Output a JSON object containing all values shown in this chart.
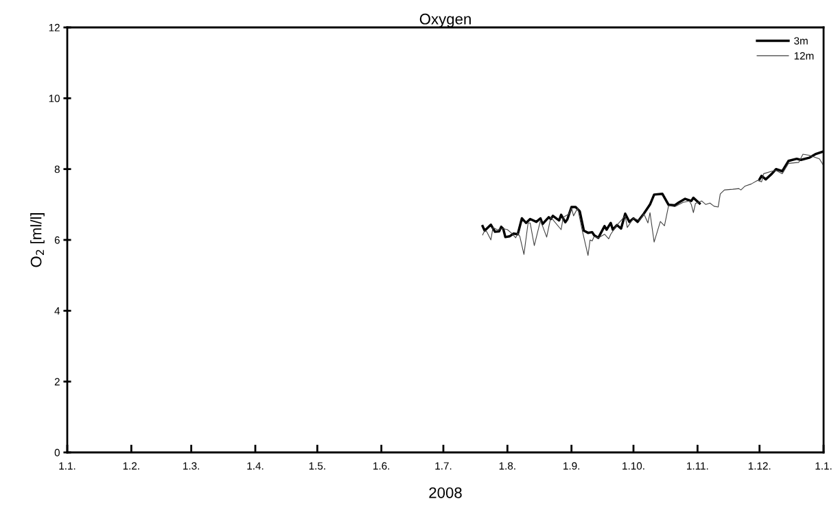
{
  "chart_data": {
    "type": "line",
    "title": "Oxygen",
    "xlabel": "2008",
    "ylabel": "O$_{2}$ [ml/l]",
    "xlim": [
      "2008-01-01",
      "2009-01-01"
    ],
    "ylim": [
      0,
      12
    ],
    "yticks": [
      0,
      2,
      4,
      6,
      8,
      10,
      12
    ],
    "xticks": [
      {
        "value": "2008-01-01",
        "label": "1.1."
      },
      {
        "value": "2008-02-01",
        "label": "1.2."
      },
      {
        "value": "2008-03-01",
        "label": "1.3."
      },
      {
        "value": "2008-04-01",
        "label": "1.4."
      },
      {
        "value": "2008-05-01",
        "label": "1.5."
      },
      {
        "value": "2008-06-01",
        "label": "1.6."
      },
      {
        "value": "2008-07-01",
        "label": "1.7."
      },
      {
        "value": "2008-08-01",
        "label": "1.8."
      },
      {
        "value": "2008-09-01",
        "label": "1.9."
      },
      {
        "value": "2008-10-01",
        "label": "1.10."
      },
      {
        "value": "2008-11-01",
        "label": "1.11."
      },
      {
        "value": "2008-12-01",
        "label": "1.12."
      },
      {
        "value": "2009-01-01",
        "label": "1.1."
      }
    ],
    "legend": "top right",
    "grid": false,
    "marker": "none",
    "series": [
      {
        "name": "3m",
        "color": "#000000",
        "x": [
          "2008-07-20",
          "2008-07-21",
          "2008-07-24",
          "2008-07-26",
          "2008-07-28",
          "2008-07-29",
          "2008-07-30",
          "2008-07-31",
          "2008-08-02",
          "2008-08-04",
          "2008-08-06",
          "2008-08-08",
          "2008-08-10",
          "2008-08-12",
          "2008-08-15",
          "2008-08-17",
          "2008-08-18",
          "2008-08-21",
          "2008-08-22",
          "2008-08-23",
          "2008-08-26",
          "2008-08-27",
          "2008-08-29",
          "2008-08-30",
          "2008-09-01",
          "2008-09-03",
          "2008-09-05",
          "2008-09-07",
          "2008-09-09",
          "2008-09-11",
          "2008-09-12",
          "2008-09-14",
          "2008-09-17",
          "2008-09-18",
          "2008-09-20",
          "2008-09-21",
          "2008-09-23",
          "2008-09-25",
          "2008-09-27",
          "2008-09-29",
          "2008-10-01",
          "2008-10-03",
          "2008-10-06",
          "2008-10-09",
          "2008-10-11",
          "2008-10-15",
          "2008-10-18",
          "2008-10-21",
          "2008-10-23",
          "2008-10-26",
          "2008-10-29",
          "2008-10-30",
          "2008-11-02",
          "2008-11-16",
          "2008-12-01",
          "2008-12-02",
          "2008-12-04",
          "2008-12-07",
          "2008-12-09",
          "2008-12-12",
          "2008-12-15",
          "2008-12-19",
          "2008-12-21",
          "2008-12-25",
          "2008-12-28",
          "2009-01-01"
        ],
        "values": [
          6.39,
          6.26,
          6.43,
          6.23,
          6.24,
          6.37,
          6.31,
          6.08,
          6.1,
          6.18,
          6.16,
          6.61,
          6.48,
          6.59,
          6.51,
          6.61,
          6.45,
          6.64,
          6.59,
          6.68,
          6.55,
          6.71,
          6.5,
          6.58,
          6.93,
          6.93,
          6.81,
          6.26,
          6.2,
          6.22,
          6.13,
          6.06,
          6.39,
          6.29,
          6.48,
          6.29,
          6.42,
          6.32,
          6.74,
          6.51,
          6.61,
          6.51,
          6.74,
          7.0,
          7.28,
          7.3,
          6.99,
          6.98,
          7.06,
          7.16,
          7.1,
          7.19,
          7.03,
          null,
          7.71,
          7.81,
          7.71,
          7.87,
          8.0,
          7.94,
          8.23,
          8.29,
          8.26,
          8.32,
          8.42,
          8.5
        ]
      },
      {
        "name": "12m",
        "color": "#404040",
        "x": [
          "2008-07-20",
          "2008-07-21",
          "2008-07-22",
          "2008-07-24",
          "2008-07-25",
          "2008-07-27",
          "2008-07-30",
          "2008-08-01",
          "2008-08-03",
          "2008-08-05",
          "2008-08-06",
          "2008-08-07",
          "2008-08-09",
          "2008-08-11",
          "2008-08-12",
          "2008-08-14",
          "2008-08-17",
          "2008-08-20",
          "2008-08-22",
          "2008-08-27",
          "2008-08-28",
          "2008-08-31",
          "2008-09-01",
          "2008-09-02",
          "2008-09-04",
          "2008-09-06",
          "2008-09-09",
          "2008-09-10",
          "2008-09-11",
          "2008-09-12",
          "2008-09-14",
          "2008-09-17",
          "2008-09-19",
          "2008-09-20",
          "2008-09-23",
          "2008-09-27",
          "2008-09-28",
          "2008-10-01",
          "2008-10-04",
          "2008-10-06",
          "2008-10-08",
          "2008-10-09",
          "2008-10-11",
          "2008-10-14",
          "2008-10-16",
          "2008-10-18",
          "2008-10-21",
          "2008-10-25",
          "2008-10-28",
          "2008-10-29",
          "2008-10-30",
          "2008-10-31",
          "2008-11-03",
          "2008-11-05",
          "2008-11-07",
          "2008-11-09",
          "2008-11-11",
          "2008-11-12",
          "2008-11-14",
          "2008-11-18",
          "2008-11-21",
          "2008-11-22",
          "2008-11-24",
          "2008-11-27",
          "2008-11-30",
          "2008-12-02",
          "2008-12-03",
          "2008-12-07",
          "2008-12-09",
          "2008-12-12",
          "2008-12-15",
          "2008-12-20",
          "2008-12-22",
          "2008-12-25",
          "2008-12-30",
          "2009-01-01"
        ],
        "values": [
          6.14,
          6.26,
          6.23,
          6.0,
          6.35,
          6.29,
          6.32,
          6.29,
          6.19,
          6.06,
          6.19,
          6.1,
          5.59,
          6.48,
          6.48,
          5.84,
          6.55,
          6.08,
          6.64,
          6.29,
          6.64,
          6.74,
          6.9,
          6.68,
          6.9,
          6.32,
          5.56,
          6.0,
          5.97,
          6.1,
          6.06,
          6.16,
          6.03,
          6.16,
          6.42,
          6.68,
          6.35,
          6.61,
          6.55,
          6.74,
          6.48,
          6.77,
          5.94,
          6.52,
          6.4,
          6.97,
          6.94,
          7.06,
          7.1,
          7.0,
          6.77,
          7.03,
          7.1,
          7.0,
          7.04,
          6.95,
          6.93,
          7.3,
          7.41,
          7.43,
          7.45,
          7.41,
          7.52,
          7.58,
          7.68,
          7.64,
          7.87,
          7.94,
          7.96,
          7.87,
          8.16,
          8.19,
          8.42,
          8.39,
          8.29,
          8.1
        ]
      }
    ]
  }
}
